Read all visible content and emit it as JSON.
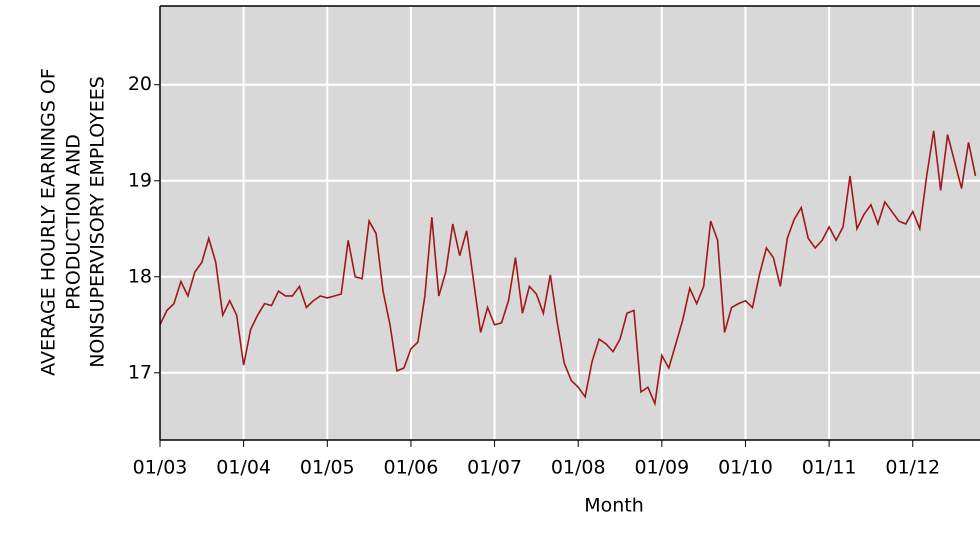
{
  "chart_data": {
    "type": "line",
    "x_label": "Month",
    "y_label": [
      "AVERAGE HOURLY EARNINGS OF",
      "PRODUCTION AND",
      "NONSUPERVISORY EMPLOYEES"
    ],
    "categories": [
      "01/03",
      null,
      null,
      null,
      null,
      null,
      null,
      null,
      null,
      null,
      null,
      null,
      "01/04",
      null,
      null,
      null,
      null,
      null,
      null,
      null,
      null,
      null,
      null,
      null,
      "01/05",
      null,
      null,
      null,
      null,
      null,
      null,
      null,
      null,
      null,
      null,
      null,
      "01/06",
      null,
      null,
      null,
      null,
      null,
      null,
      null,
      null,
      null,
      null,
      null,
      "01/07",
      null,
      null,
      null,
      null,
      null,
      null,
      null,
      null,
      null,
      null,
      null,
      "01/08",
      null,
      null,
      null,
      null,
      null,
      null,
      null,
      null,
      null,
      null,
      null,
      "01/09",
      null,
      null,
      null,
      null,
      null,
      null,
      null,
      null,
      null,
      null,
      null,
      "01/10",
      null,
      null,
      null,
      null,
      null,
      null,
      null,
      null,
      null,
      null,
      null,
      "01/11",
      null,
      null,
      null,
      null,
      null,
      null,
      null,
      null,
      null,
      null,
      null,
      "01/12",
      null,
      null,
      null,
      null,
      null,
      null,
      null,
      null,
      null
    ],
    "series": [
      {
        "color": "#a01818",
        "values": [
          17.5,
          17.65,
          17.72,
          17.95,
          17.8,
          18.05,
          18.15,
          18.4,
          18.15,
          17.6,
          17.75,
          17.6,
          17.08,
          17.45,
          17.6,
          17.72,
          17.7,
          17.85,
          17.8,
          17.8,
          17.9,
          17.68,
          17.75,
          17.8,
          17.78,
          17.8,
          17.82,
          18.38,
          18.0,
          17.98,
          18.58,
          18.45,
          17.85,
          17.5,
          17.02,
          17.05,
          17.25,
          17.32,
          17.8,
          18.62,
          17.8,
          18.05,
          18.55,
          18.22,
          18.48,
          17.95,
          17.42,
          17.68,
          17.5,
          17.52,
          17.75,
          18.2,
          17.62,
          17.9,
          17.82,
          17.62,
          18.02,
          17.52,
          17.1,
          16.92,
          16.85,
          16.75,
          17.12,
          17.35,
          17.3,
          17.22,
          17.35,
          17.62,
          17.65,
          16.8,
          16.85,
          16.68,
          17.18,
          17.05,
          17.3,
          17.55,
          17.88,
          17.72,
          17.9,
          18.58,
          18.38,
          17.42,
          17.68,
          17.72,
          17.75,
          17.68,
          18.02,
          18.3,
          18.2,
          17.9,
          18.4,
          18.6,
          18.72,
          18.4,
          18.3,
          18.38,
          18.52,
          18.38,
          18.52,
          19.05,
          18.5,
          18.65,
          18.75,
          18.55,
          18.78,
          18.68,
          18.58,
          18.55,
          18.68,
          18.5,
          19.05,
          19.52,
          18.9,
          19.48,
          19.2,
          18.92,
          19.4,
          19.05
        ]
      }
    ],
    "ylim": [
      16.3,
      20.82
    ],
    "yticks": [
      17,
      18,
      19,
      20
    ],
    "grid": true,
    "background": "#d8d8d8",
    "label_color": "#1a3a9a"
  }
}
